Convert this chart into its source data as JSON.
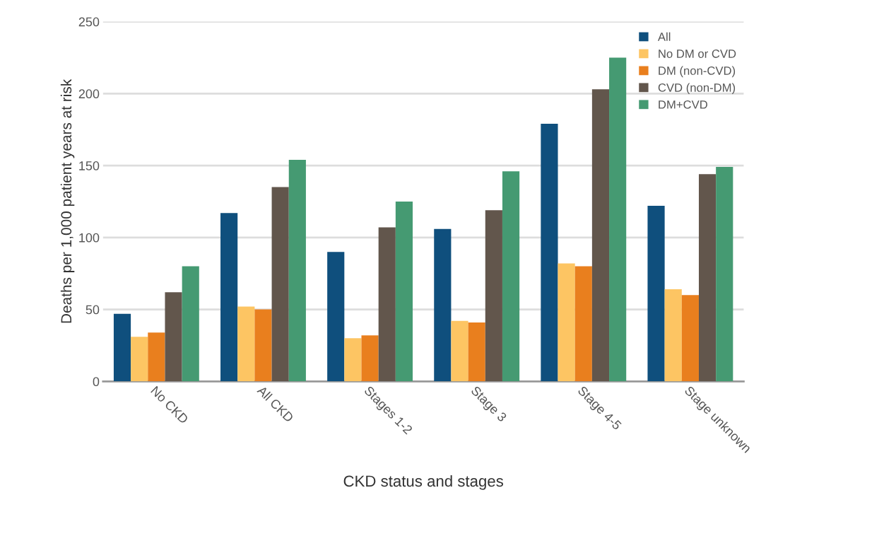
{
  "chart_data": {
    "type": "bar",
    "xlabel": "CKD status and stages",
    "ylabel": "Deaths per 1,000 patient years at risk",
    "categories": [
      "No CKD",
      "All CKD",
      "Stages 1-2",
      "Stage 3",
      "Stage 4-5",
      "Stage unknown"
    ],
    "series": [
      {
        "name": "All",
        "color": "#0f4f7d",
        "values": [
          47,
          117,
          90,
          106,
          179,
          122
        ]
      },
      {
        "name": "No DM or CVD",
        "color": "#fdc563",
        "values": [
          31,
          52,
          30,
          42,
          82,
          64
        ]
      },
      {
        "name": "DM (non-CVD)",
        "color": "#e97f1e",
        "values": [
          34,
          50,
          32,
          41,
          80,
          60
        ]
      },
      {
        "name": "CVD (non-DM)",
        "color": "#62564c",
        "values": [
          62,
          135,
          107,
          119,
          203,
          144
        ]
      },
      {
        "name": "DM+CVD",
        "color": "#459a72",
        "values": [
          80,
          154,
          125,
          146,
          225,
          149
        ]
      }
    ],
    "ylim": [
      0,
      250
    ],
    "yticks": [
      0,
      50,
      100,
      150,
      200,
      250
    ],
    "grid": "y",
    "legend": "top right"
  }
}
